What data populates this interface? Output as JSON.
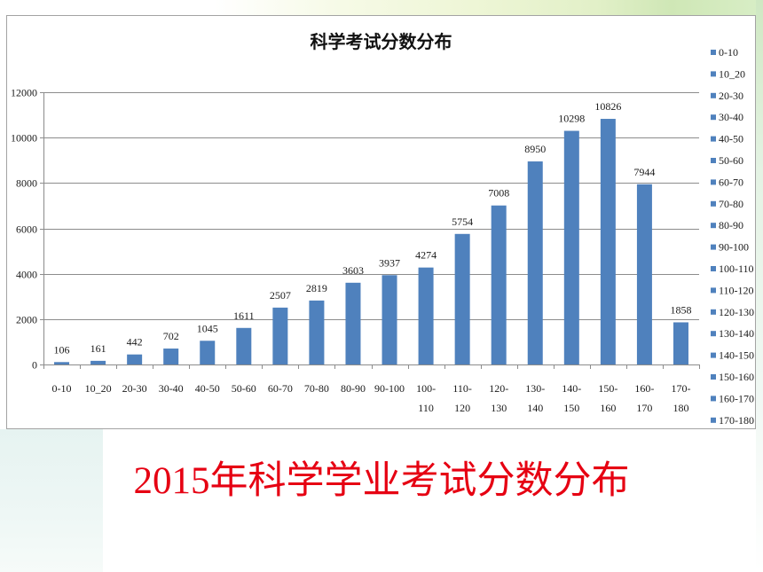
{
  "slide": {
    "caption": "2015年科学学业考试分数分布"
  },
  "colors": {
    "caption": "#e60012",
    "bar": "#4f81bd",
    "gridline": "#8c8c8c",
    "axis": "#8c8c8c",
    "text": "#1a1a1a"
  },
  "chart_data": {
    "type": "bar",
    "title": "科学考试分数分布",
    "categories": [
      "0-10",
      "10_20",
      "20-30",
      "30-40",
      "40-50",
      "50-60",
      "60-70",
      "70-80",
      "80-90",
      "90-100",
      "100-110",
      "110-120",
      "120-130",
      "130-140",
      "140-150",
      "150-160",
      "160-170",
      "170-180"
    ],
    "values": [
      106,
      161,
      442,
      702,
      1045,
      1611,
      2507,
      2819,
      3603,
      3937,
      4274,
      5754,
      7008,
      8950,
      10298,
      10826,
      7944,
      1858
    ],
    "ylim": [
      0,
      12000
    ],
    "yticks": [
      0,
      2000,
      4000,
      6000,
      8000,
      10000,
      12000
    ],
    "grid": true,
    "data_labels": true,
    "legend": {
      "position": "right",
      "entries": [
        "0-10",
        "10_20",
        "20-30",
        "30-40",
        "40-50",
        "50-60",
        "60-70",
        "70-80",
        "80-90",
        "90-100",
        "100-110",
        "110-120",
        "120-130",
        "130-140",
        "140-150",
        "150-160",
        "160-170",
        "170-180"
      ]
    }
  }
}
